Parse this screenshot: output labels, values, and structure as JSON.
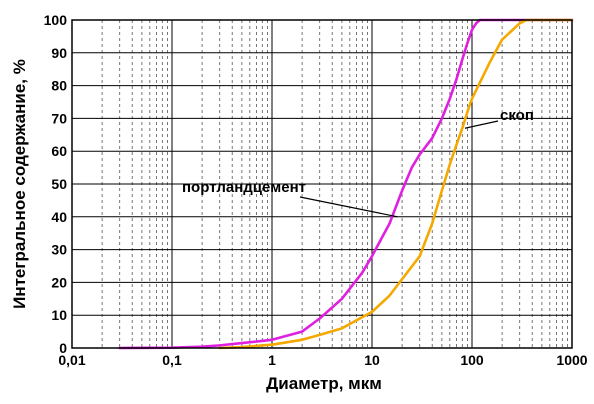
{
  "chart_data": {
    "type": "line",
    "xlabel": "Диаметр, мкм",
    "ylabel": "Интегральное содержание, %",
    "xscale": "log",
    "xlim": [
      0.01,
      1000
    ],
    "ylim": [
      0,
      100
    ],
    "grid": true,
    "x_tick_labels": [
      "0,01",
      "0,1",
      "1",
      "10",
      "100",
      "1000"
    ],
    "y_tick_labels": [
      "0",
      "10",
      "20",
      "30",
      "40",
      "50",
      "60",
      "70",
      "80",
      "90",
      "100"
    ],
    "series": [
      {
        "name": "портландцемент",
        "color": "#e020e0",
        "points": [
          [
            0.03,
            0
          ],
          [
            0.1,
            0.1
          ],
          [
            0.2,
            0.4
          ],
          [
            0.3,
            0.8
          ],
          [
            0.5,
            1.5
          ],
          [
            1,
            2.5
          ],
          [
            2,
            5
          ],
          [
            3,
            9
          ],
          [
            5,
            15
          ],
          [
            8,
            23
          ],
          [
            10,
            28
          ],
          [
            15,
            38
          ],
          [
            20,
            48
          ],
          [
            25,
            55
          ],
          [
            30,
            59
          ],
          [
            40,
            64
          ],
          [
            50,
            70
          ],
          [
            60,
            76
          ],
          [
            70,
            82
          ],
          [
            80,
            88
          ],
          [
            90,
            93
          ],
          [
            100,
            97
          ],
          [
            110,
            99
          ],
          [
            120,
            100
          ],
          [
            1000,
            100
          ]
        ]
      },
      {
        "name": "скоп",
        "color": "#f5a800",
        "points": [
          [
            0.3,
            0
          ],
          [
            0.5,
            0.3
          ],
          [
            1,
            1
          ],
          [
            2,
            2.5
          ],
          [
            3,
            4
          ],
          [
            5,
            6
          ],
          [
            10,
            11
          ],
          [
            15,
            16
          ],
          [
            20,
            21
          ],
          [
            30,
            28
          ],
          [
            40,
            38
          ],
          [
            50,
            48
          ],
          [
            60,
            56
          ],
          [
            70,
            62
          ],
          [
            80,
            67
          ],
          [
            90,
            72
          ],
          [
            100,
            76
          ],
          [
            150,
            87
          ],
          [
            200,
            94
          ],
          [
            300,
            99
          ],
          [
            350,
            100
          ],
          [
            1000,
            100
          ]
        ]
      }
    ],
    "annotations": [
      {
        "text": "портландцемент",
        "series": 0,
        "target": [
          18,
          40
        ]
      },
      {
        "text": "скоп",
        "series": 1,
        "target": [
          85,
          67
        ]
      }
    ]
  }
}
